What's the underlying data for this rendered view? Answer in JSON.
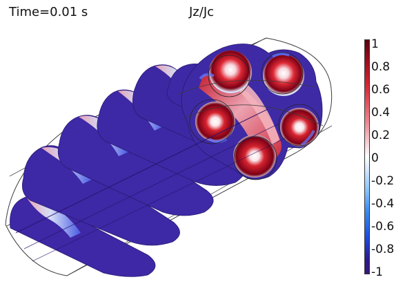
{
  "header": {
    "time_label": "Time=0.01 s",
    "quantity_label": "Jz/Jc"
  },
  "colorbar": {
    "tick_labels": [
      "1",
      "0.8",
      "0.6",
      "0.4",
      "0.2",
      "0",
      "-0.2",
      "-0.4",
      "-0.6",
      "-0.8",
      "-1"
    ],
    "range": [
      -1,
      1
    ],
    "colors": {
      "max": "#6e0012",
      "high": "#d8202c",
      "mid_high": "#f4aab4",
      "zero": "#ffffff",
      "mid_low": "#79b8f2",
      "low": "#2448d8",
      "min": "#341a8c"
    }
  },
  "figure": {
    "description_colors": {
      "background_object": "#3f2aa4",
      "boundary_line": "#2a2a2a"
    }
  }
}
